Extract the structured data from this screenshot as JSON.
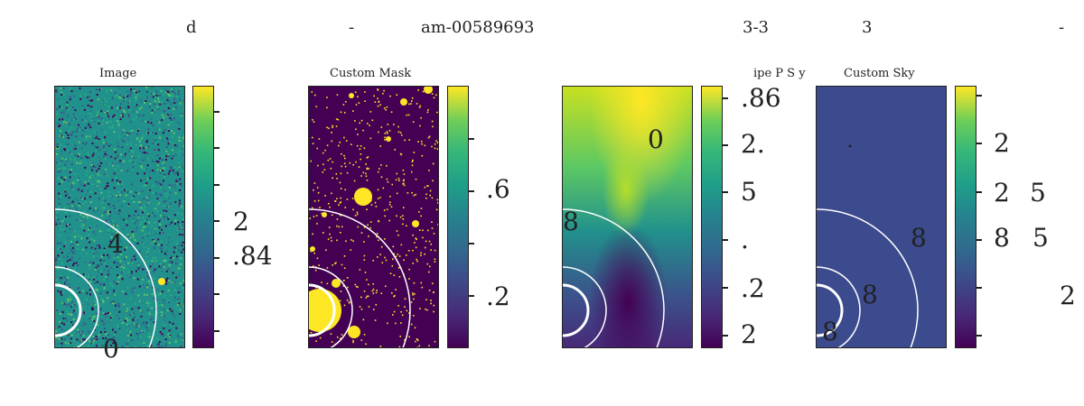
{
  "top_fragments": [
    "d",
    "-",
    "am-00589693",
    "3-3",
    "3",
    "-"
  ],
  "panel_titles": [
    "Image",
    "Custom Mask",
    "ipe  P S  y",
    "Custom Sky"
  ],
  "overlay_labels": [
    "4",
    "0",
    "0",
    "8",
    "8",
    "8",
    "8"
  ],
  "colorbar_labels": {
    "cb1": [
      "2",
      ".84"
    ],
    "cb2": [
      ".6",
      ".2"
    ],
    "cb3": [
      ".86",
      "2.",
      "5",
      ".",
      ".2",
      "2"
    ],
    "cb4": [
      "2",
      "2",
      "5",
      "8",
      "5",
      "2"
    ]
  },
  "colormap": "viridis",
  "colors": {
    "dark": "#440154",
    "mid": "#21918c",
    "bright": "#fde725",
    "sky": "#3b4b8e",
    "ring": "#ffffff"
  }
}
